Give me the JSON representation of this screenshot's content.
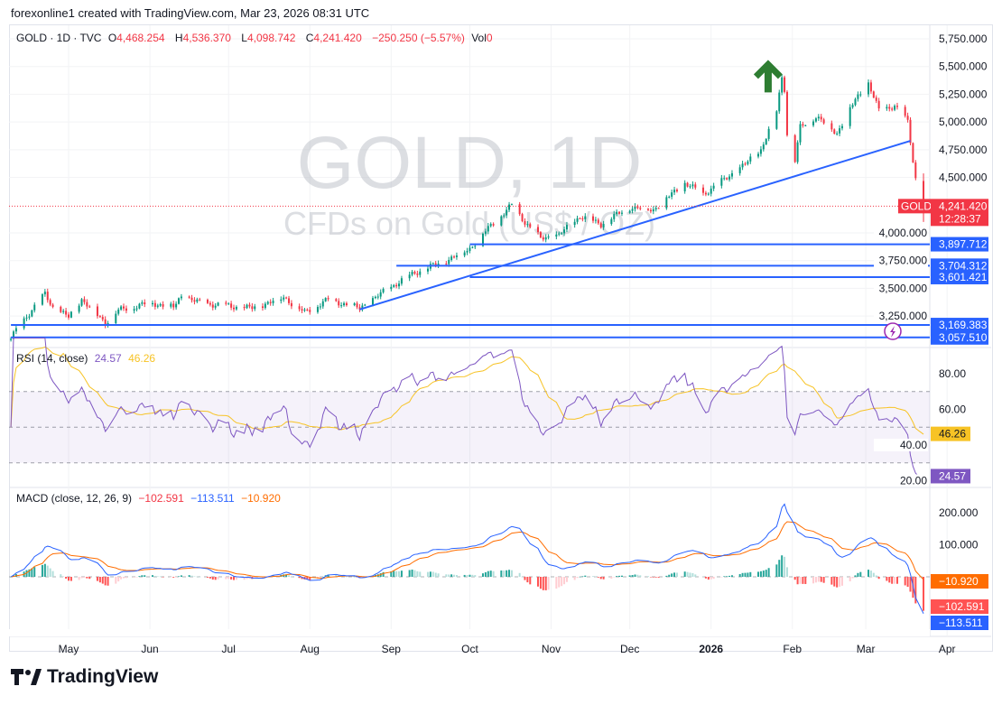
{
  "caption": "forexonline1 created with TradingView.com, Mar 23, 2026 08:31 UTC",
  "legend": {
    "symbol": "GOLD · 1D · TVC",
    "o_label": "O",
    "o": "4,468.254",
    "h_label": "H",
    "h": "4,536.370",
    "l_label": "L",
    "l": "4,098.742",
    "c_label": "C",
    "c": "4,241.420",
    "change": "−250.250 (−5.57%)",
    "vol_label": "Vol",
    "vol": "0"
  },
  "watermark": {
    "title": "GOLD, 1D",
    "subtitle": "CFDs on Gold (US$ / OZ)"
  },
  "price_axis": {
    "ticks": [
      "5,750.000",
      "5,500.000",
      "5,250.000",
      "5,000.000",
      "4,750.000",
      "4,500.000",
      "4,000.000",
      "3,750.000",
      "3,500.000",
      "3,250.000"
    ],
    "tick_values": [
      5750,
      5500,
      5250,
      5000,
      4750,
      4500,
      4000,
      3750,
      3500,
      3250
    ]
  },
  "last_price": {
    "symbol_tag": "GOLD",
    "value": "4,241.420",
    "countdown": "12:28:37",
    "color": "#f23645"
  },
  "levels": [
    {
      "value": 3897.712,
      "label": "3,897.712",
      "start": "2025-10-01"
    },
    {
      "value": 3704.312,
      "label": "3,704.312",
      "start": "2025-09-03"
    },
    {
      "value": 3601.421,
      "label": "3,601.421",
      "start": "2025-10-01"
    },
    {
      "value": 3169.383,
      "label": "3,169.383",
      "start": "2025-04-09"
    },
    {
      "value": 3057.51,
      "label": "3,057.510",
      "start": "2025-04-09"
    }
  ],
  "trendline": {
    "from": {
      "date": "2025-08-20",
      "price": 3310
    },
    "to": {
      "date": "2026-03-18",
      "price": 4830
    },
    "color": "#2962ff"
  },
  "annotation_arrow": {
    "icon": "arrow-up-icon",
    "color": "#2e7d32",
    "date": "2026-01-20",
    "price": 5560
  },
  "time_axis": [
    "May",
    "Jun",
    "Jul",
    "Aug",
    "Sep",
    "Oct",
    "Nov",
    "Dec",
    "2026",
    "Feb",
    "Mar",
    "Apr"
  ],
  "time_axis_dates": [
    "2025-05-01",
    "2025-06-01",
    "2025-07-01",
    "2025-08-01",
    "2025-09-01",
    "2025-10-01",
    "2025-11-01",
    "2025-12-01",
    "2026-01-01",
    "2026-02-01",
    "2026-03-01",
    "2026-04-01"
  ],
  "rsi": {
    "title": "RSI (14, close)",
    "value": "24.57",
    "ma": "46.26",
    "ticks": [
      "80.00",
      "60.00",
      "40.00",
      "20.00"
    ],
    "tick_values": [
      80,
      60,
      40,
      20
    ],
    "bands": [
      70,
      30
    ],
    "color": "#7e57c2",
    "ma_color": "#f7c325"
  },
  "macd": {
    "title": "MACD (close, 12, 26, 9)",
    "hist": "−102.591",
    "macd": "−113.511",
    "signal": "−10.920",
    "ticks": [
      "200.000",
      "100.000"
    ],
    "tick_values": [
      200,
      100
    ],
    "macd_color": "#2962ff",
    "signal_color": "#ff6d00"
  },
  "footer": {
    "brand": "TradingView"
  },
  "colors": {
    "up": "#089981",
    "down": "#f23645",
    "level": "#2962ff"
  },
  "chart_data": {
    "type": "candlestick",
    "symbol": "GOLD",
    "interval": "1D",
    "approx_closes": [
      [
        "2025-04-09",
        3050
      ],
      [
        "2025-04-14",
        3220
      ],
      [
        "2025-04-22",
        3450
      ],
      [
        "2025-04-25",
        3330
      ],
      [
        "2025-05-01",
        3240
      ],
      [
        "2025-05-06",
        3400
      ],
      [
        "2025-05-15",
        3190
      ],
      [
        "2025-05-20",
        3300
      ],
      [
        "2025-06-01",
        3370
      ],
      [
        "2025-06-10",
        3330
      ],
      [
        "2025-06-13",
        3430
      ],
      [
        "2025-06-20",
        3370
      ],
      [
        "2025-07-01",
        3340
      ],
      [
        "2025-07-10",
        3320
      ],
      [
        "2025-07-22",
        3420
      ],
      [
        "2025-07-30",
        3280
      ],
      [
        "2025-08-08",
        3400
      ],
      [
        "2025-08-20",
        3320
      ],
      [
        "2025-09-02",
        3530
      ],
      [
        "2025-09-10",
        3640
      ],
      [
        "2025-09-22",
        3750
      ],
      [
        "2025-10-01",
        3860
      ],
      [
        "2025-10-08",
        4040
      ],
      [
        "2025-10-17",
        4250
      ],
      [
        "2025-10-22",
        4100
      ],
      [
        "2025-10-28",
        3950
      ],
      [
        "2025-11-04",
        3980
      ],
      [
        "2025-11-12",
        4150
      ],
      [
        "2025-11-20",
        4080
      ],
      [
        "2025-12-01",
        4230
      ],
      [
        "2025-12-10",
        4210
      ],
      [
        "2025-12-22",
        4450
      ],
      [
        "2025-12-29",
        4350
      ],
      [
        "2026-01-06",
        4480
      ],
      [
        "2026-01-14",
        4620
      ],
      [
        "2026-01-20",
        4750
      ],
      [
        "2026-01-26",
        5100
      ],
      [
        "2026-01-28",
        5400
      ],
      [
        "2026-01-29",
        5300
      ],
      [
        "2026-01-30",
        4900
      ],
      [
        "2026-02-02",
        4650
      ],
      [
        "2026-02-04",
        4950
      ],
      [
        "2026-02-10",
        5050
      ],
      [
        "2026-02-18",
        4900
      ],
      [
        "2026-02-25",
        5200
      ],
      [
        "2026-03-02",
        5350
      ],
      [
        "2026-03-06",
        5100
      ],
      [
        "2026-03-12",
        5150
      ],
      [
        "2026-03-17",
        5000
      ],
      [
        "2026-03-19",
        4650
      ],
      [
        "2026-03-20",
        4490
      ],
      [
        "2026-03-23",
        4241.42
      ]
    ],
    "ylim": [
      3000,
      5800
    ]
  }
}
